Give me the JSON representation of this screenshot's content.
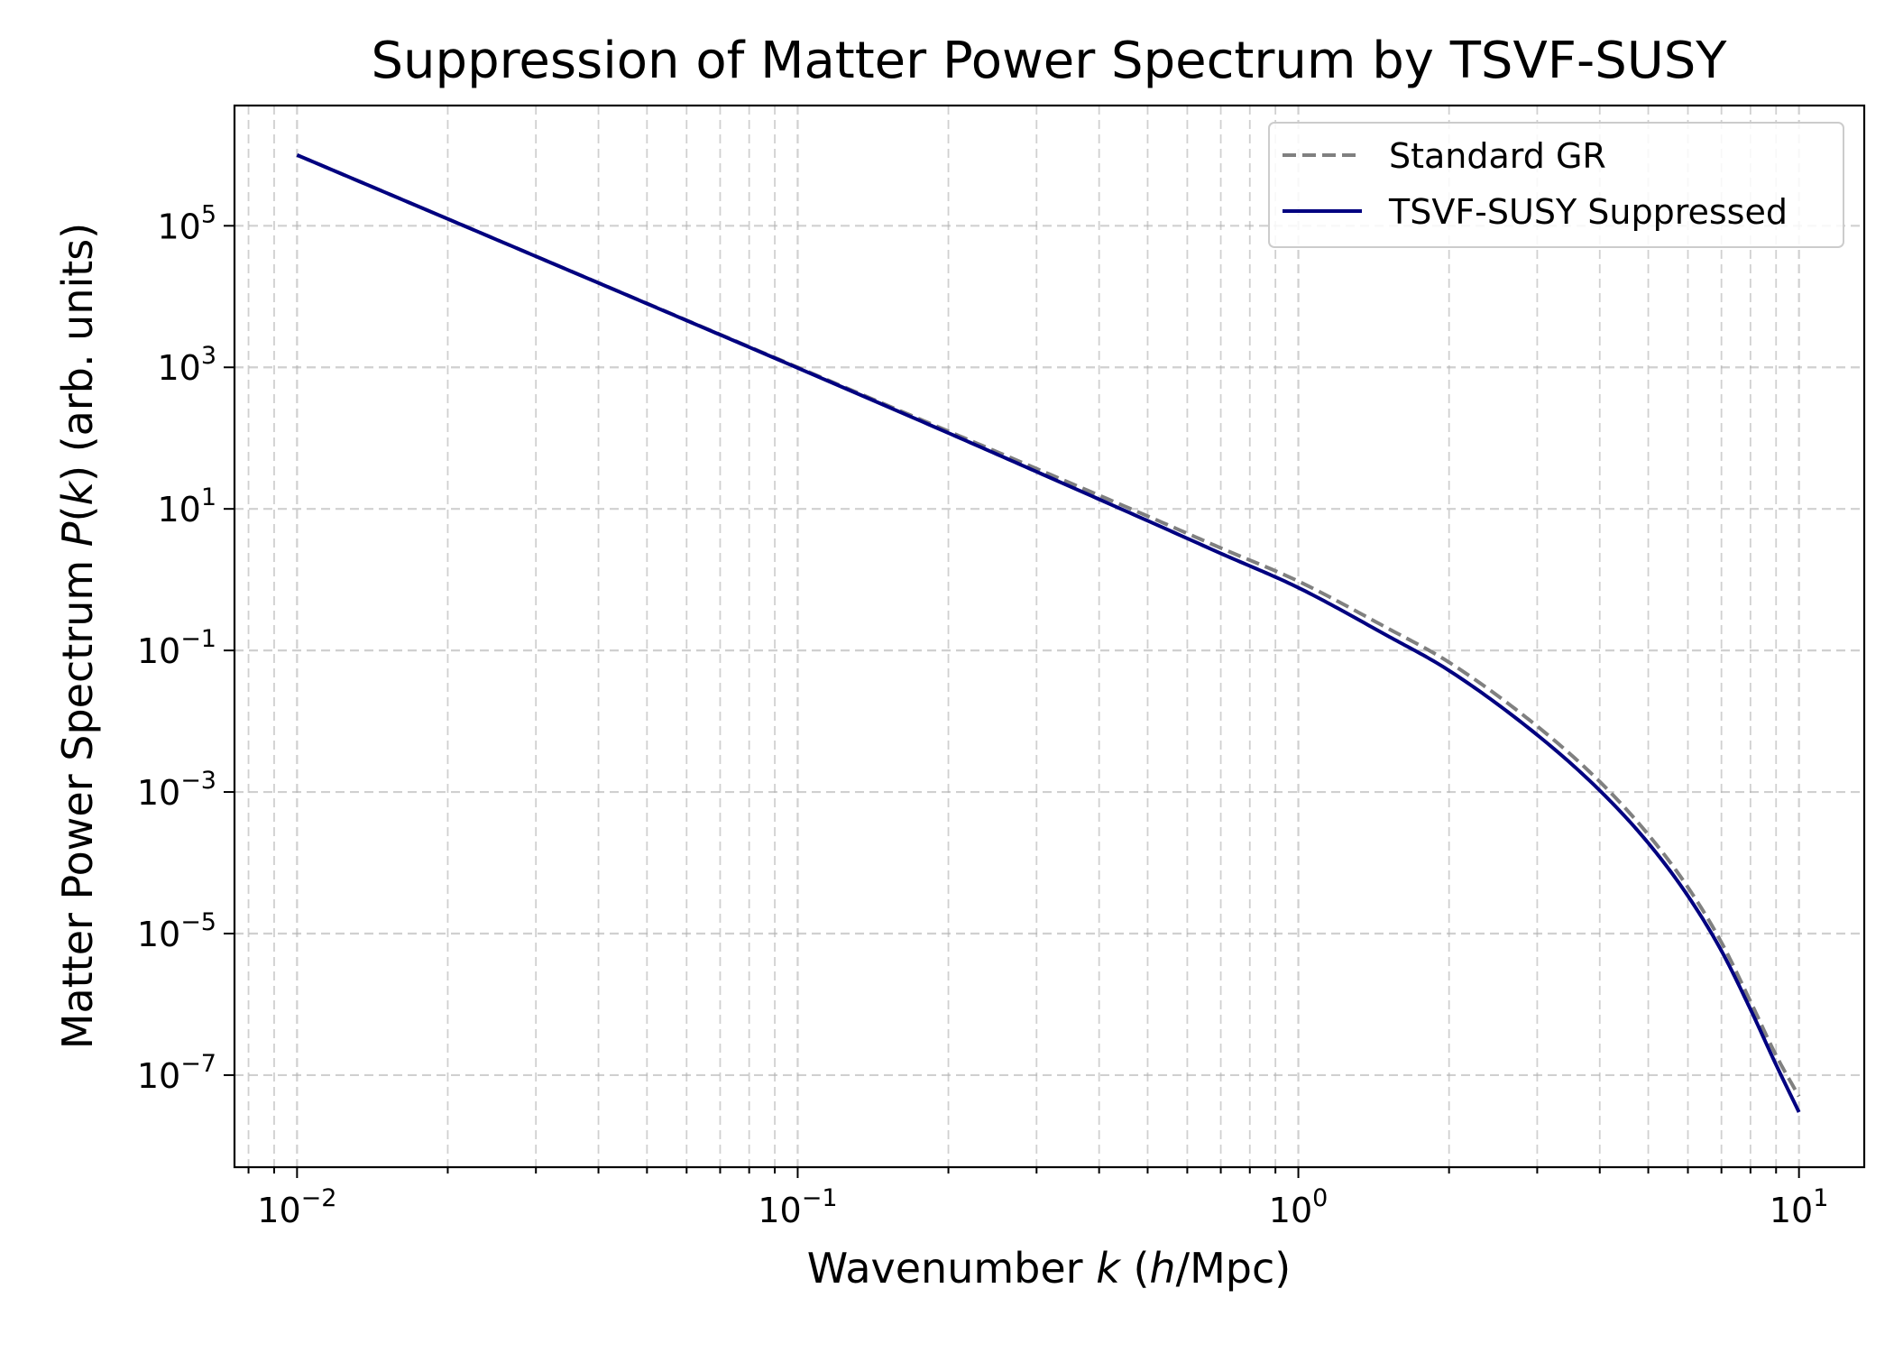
{
  "chart_data": {
    "type": "line",
    "title": "Suppression of Matter Power Spectrum by TSVF-SUSY",
    "xlabel": {
      "prefix": "Wavenumber ",
      "var": "k",
      "mid": " (",
      "var2": "h",
      "suffix": "/Mpc)"
    },
    "ylabel": {
      "prefix": "Matter Power Spectrum ",
      "var": "P",
      "mid": "(",
      "var2": "k",
      "suffix": ") (arb. units)"
    },
    "x_scale": "log",
    "y_scale": "log",
    "xlim": [
      0.0075,
      13.5
    ],
    "ylim": [
      5e-09,
      5000000
    ],
    "x_ticks": [
      {
        "base": "10",
        "exp": "−2",
        "value": 0.01
      },
      {
        "base": "10",
        "exp": "−1",
        "value": 0.1
      },
      {
        "base": "10",
        "exp": "0",
        "value": 1
      },
      {
        "base": "10",
        "exp": "1",
        "value": 10
      }
    ],
    "y_ticks": [
      {
        "base": "10",
        "exp": "5",
        "value": 100000
      },
      {
        "base": "10",
        "exp": "3",
        "value": 1000
      },
      {
        "base": "10",
        "exp": "1",
        "value": 10
      },
      {
        "base": "10",
        "exp": "−1",
        "value": 0.1
      },
      {
        "base": "10",
        "exp": "−3",
        "value": 0.001
      },
      {
        "base": "10",
        "exp": "−5",
        "value": 1e-05
      },
      {
        "base": "10",
        "exp": "−7",
        "value": 1e-07
      }
    ],
    "grid": true,
    "legend_position": "top-right",
    "series": [
      {
        "name": "Standard GR",
        "color": "#808080",
        "style": "dashed",
        "x": [
          0.01,
          0.02,
          0.05,
          0.1,
          0.2,
          0.3,
          0.5,
          0.7,
          1,
          1.5,
          2,
          3,
          4,
          5,
          6,
          7,
          8,
          9,
          10
        ],
        "y": [
          1000000,
          125000,
          8000,
          1000,
          125,
          37,
          7.9,
          2.8,
          0.95,
          0.21,
          0.068,
          0.0085,
          0.0014,
          0.00025,
          4.5e-05,
          7.5e-06,
          1.1e-06,
          1.9e-07,
          5e-08
        ]
      },
      {
        "name": "TSVF-SUSY Suppressed",
        "color": "#000080",
        "style": "solid",
        "x": [
          0.01,
          0.02,
          0.05,
          0.1,
          0.2,
          0.3,
          0.5,
          0.7,
          1,
          1.5,
          2,
          3,
          4,
          5,
          6,
          7,
          8,
          9,
          10
        ],
        "y": [
          1000000,
          125000,
          7950,
          980,
          118,
          33.5,
          6.8,
          2.35,
          0.77,
          0.164,
          0.052,
          0.0064,
          0.00105,
          0.00019,
          3.4e-05,
          5.7e-06,
          8.5e-07,
          1.4e-07,
          3e-08
        ]
      }
    ]
  }
}
